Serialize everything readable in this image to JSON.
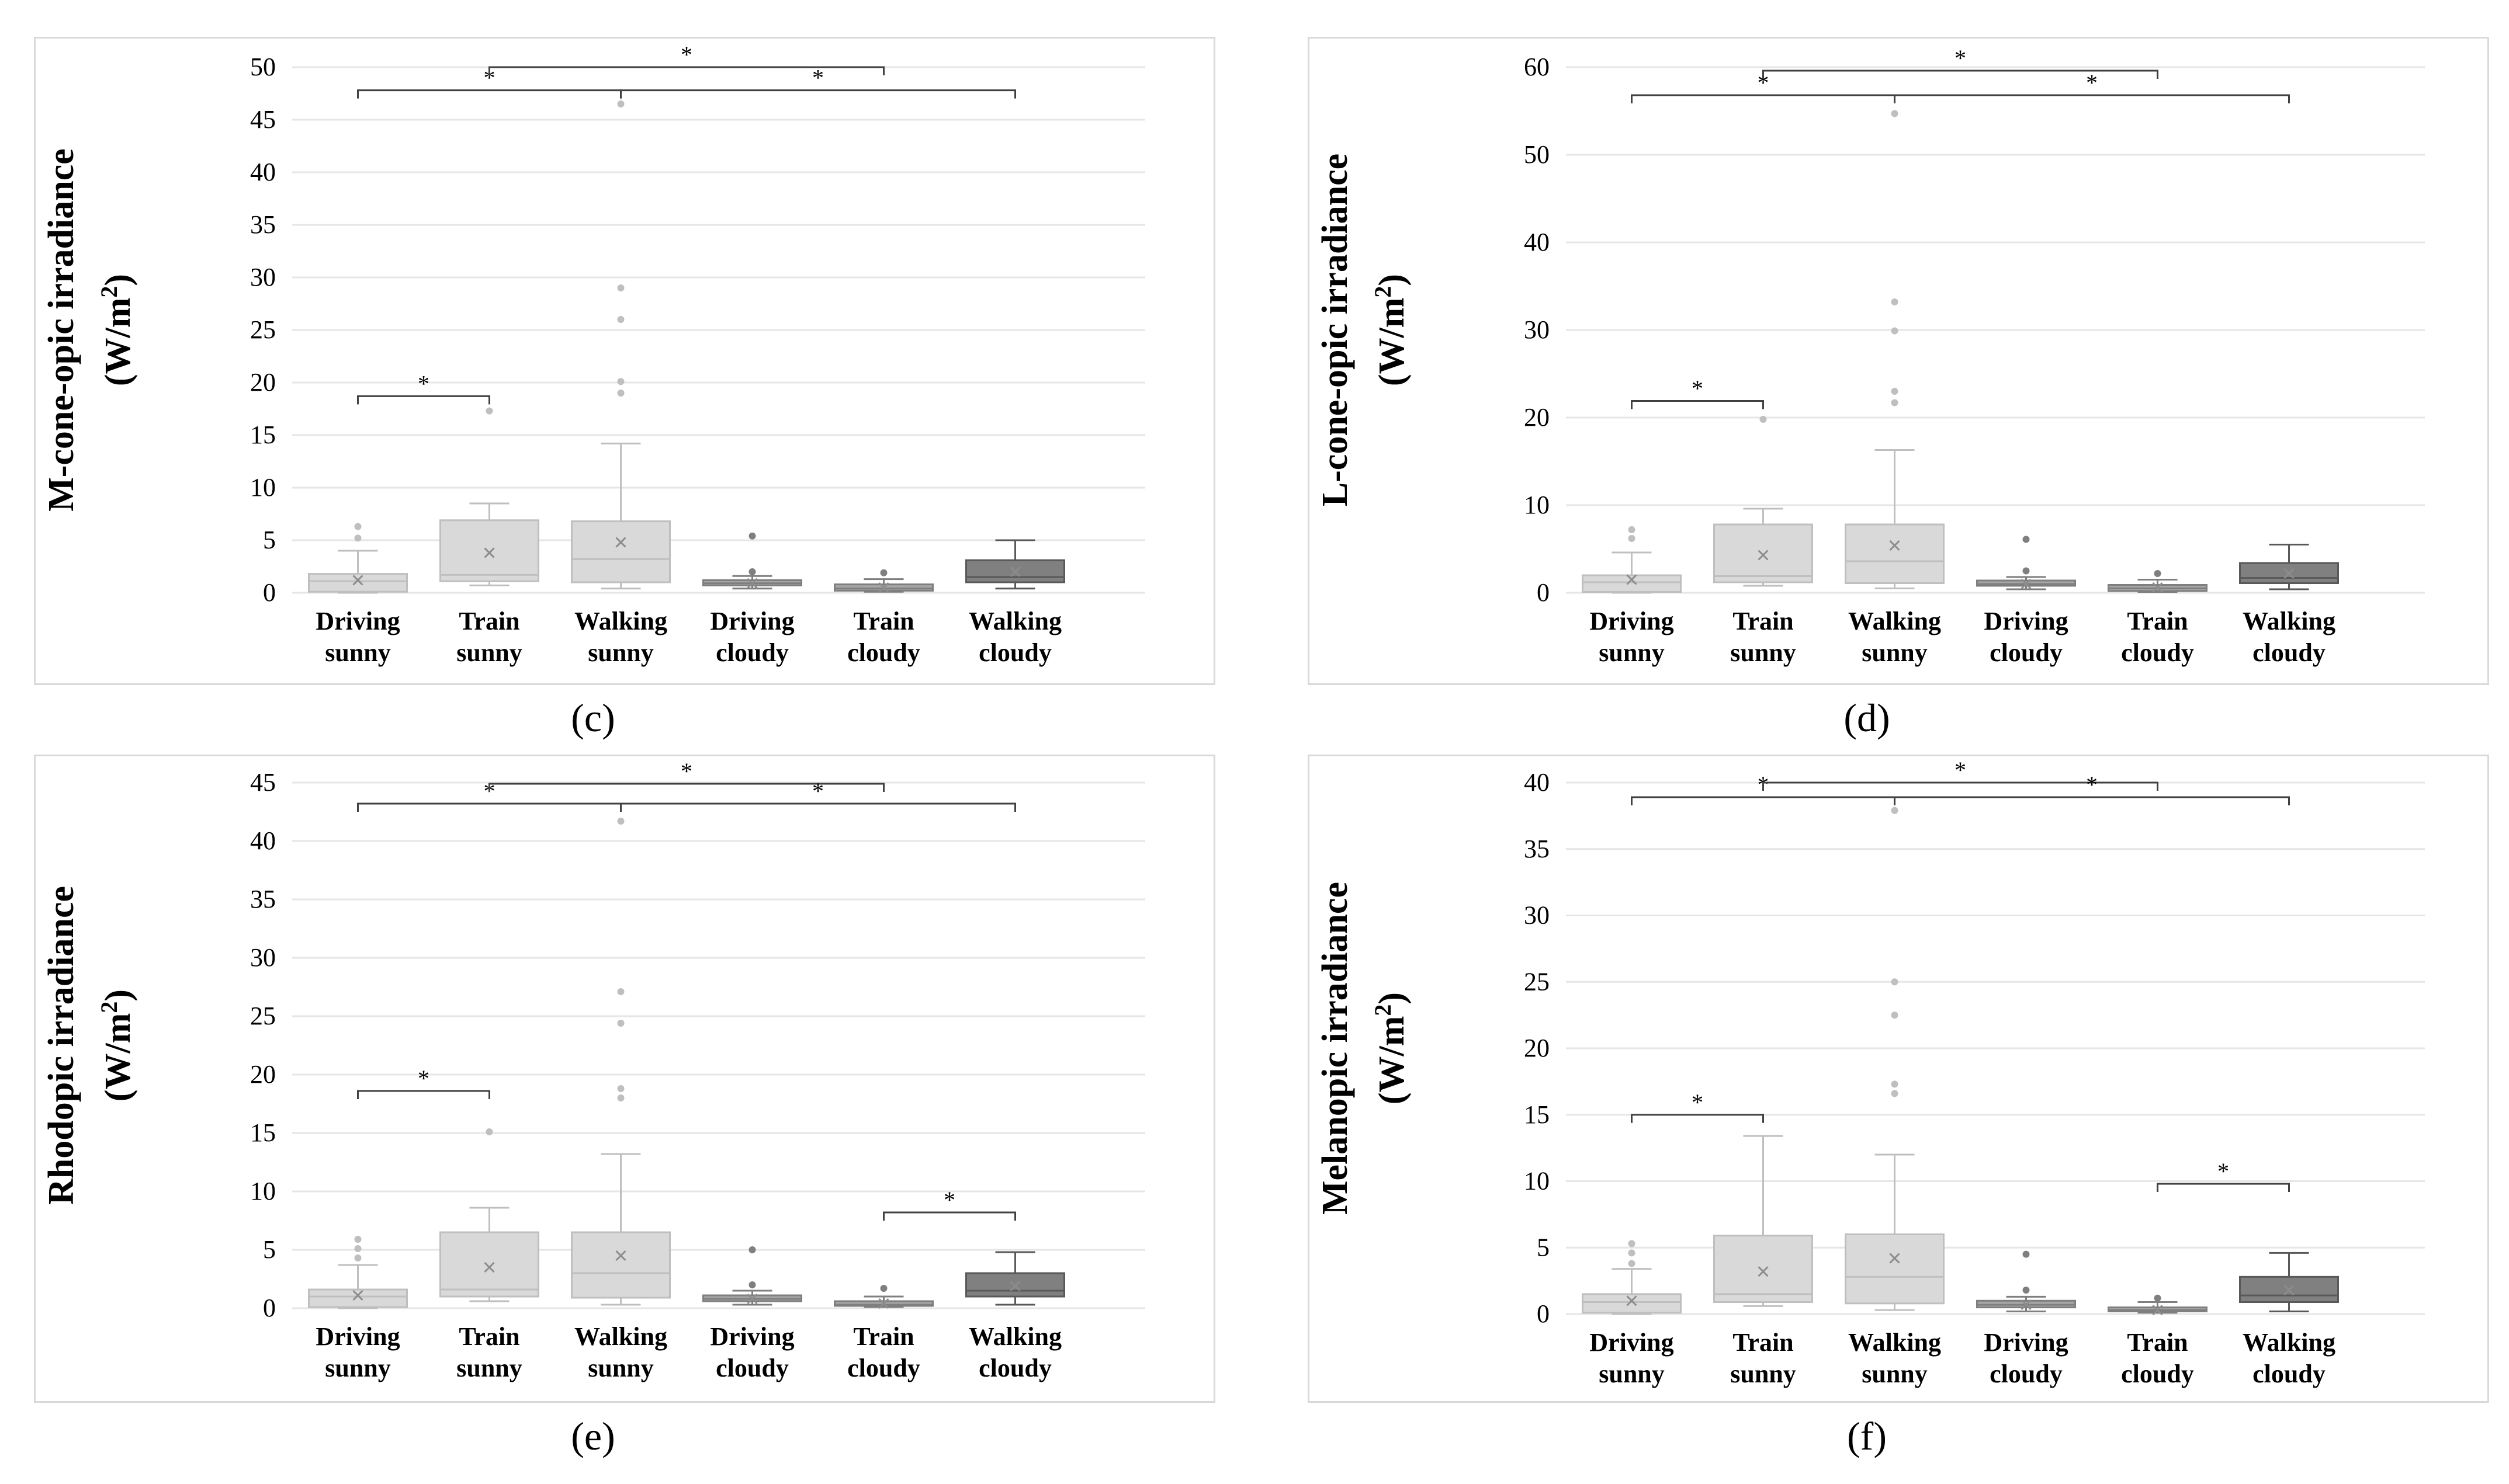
{
  "colors": {
    "sunny_fill": "#d9d9d9",
    "sunny_stroke": "#bfbfbf",
    "cloudy_fill": "#a6a6a6",
    "cloudy_stroke": "#7f7f7f",
    "walking_cloudy_fill": "#808080",
    "walking_cloudy_stroke": "#595959",
    "grid": "#e6e6e6",
    "bracket": "#404040"
  },
  "chart_data": [
    {
      "id": "c",
      "type": "boxplot",
      "caption": "(c)",
      "ylabel_line1": "M-cone-opic irradiance",
      "ylabel_line2_prefix": "(W/m",
      "ylabel_line2_sup": "2",
      "ylabel_line2_suffix": ")",
      "ylim": [
        0,
        50
      ],
      "yticks": [
        "0",
        "5",
        "10",
        "15",
        "20",
        "25",
        "30",
        "35",
        "40",
        "45",
        "50"
      ],
      "categories": [
        {
          "line1": "Driving",
          "line2": "sunny"
        },
        {
          "line1": "Train",
          "line2": "sunny"
        },
        {
          "line1": "Walking",
          "line2": "sunny"
        },
        {
          "line1": "Driving",
          "line2": "cloudy"
        },
        {
          "line1": "Train",
          "line2": "cloudy"
        },
        {
          "line1": "Walking",
          "line2": "cloudy"
        }
      ],
      "boxes": [
        {
          "min": 0,
          "q1": 0.1,
          "median": 1.1,
          "q3": 1.8,
          "max": 4.0,
          "mean": 1.2,
          "outliers": [
            5.2,
            6.3
          ]
        },
        {
          "min": 0.7,
          "q1": 1.1,
          "median": 1.7,
          "q3": 6.9,
          "max": 8.5,
          "mean": 3.8,
          "outliers": [
            17.3
          ]
        },
        {
          "min": 0.4,
          "q1": 1.0,
          "median": 3.2,
          "q3": 6.8,
          "max": 14.2,
          "mean": 4.8,
          "outliers": [
            19.0,
            20.1,
            26.0,
            29.0,
            46.5
          ]
        },
        {
          "min": 0.4,
          "q1": 0.7,
          "median": 0.9,
          "q3": 1.2,
          "max": 1.6,
          "mean": 0.9,
          "outliers": [
            2.0,
            5.4
          ]
        },
        {
          "min": 0.1,
          "q1": 0.2,
          "median": 0.4,
          "q3": 0.8,
          "max": 1.3,
          "mean": 0.5,
          "outliers": [
            1.9
          ]
        },
        {
          "min": 0.4,
          "q1": 1.0,
          "median": 1.5,
          "q3": 3.1,
          "max": 5.0,
          "mean": 2.0,
          "outliers": []
        }
      ],
      "brackets": [
        {
          "from": 0,
          "to": 2,
          "y": 47.8,
          "label": "*"
        },
        {
          "from": 1,
          "to": 4,
          "y": 50.0,
          "label": "*"
        },
        {
          "from": 2,
          "to": 5,
          "y": 47.8,
          "label": "*"
        },
        {
          "from": 0,
          "to": 1,
          "y": 18.7,
          "label": "*"
        }
      ]
    },
    {
      "id": "d",
      "type": "boxplot",
      "caption": "(d)",
      "ylabel_line1": "L-cone-opic irradiance",
      "ylabel_line2_prefix": "(W/m",
      "ylabel_line2_sup": "2",
      "ylabel_line2_suffix": ")",
      "ylim": [
        0,
        60
      ],
      "yticks": [
        "0",
        "10",
        "20",
        "30",
        "40",
        "50",
        "60"
      ],
      "categories": [
        {
          "line1": "Driving",
          "line2": "sunny"
        },
        {
          "line1": "Train",
          "line2": "sunny"
        },
        {
          "line1": "Walking",
          "line2": "sunny"
        },
        {
          "line1": "Driving",
          "line2": "cloudy"
        },
        {
          "line1": "Train",
          "line2": "cloudy"
        },
        {
          "line1": "Walking",
          "line2": "cloudy"
        }
      ],
      "boxes": [
        {
          "min": 0,
          "q1": 0.1,
          "median": 1.2,
          "q3": 2.0,
          "max": 4.6,
          "mean": 1.5,
          "outliers": [
            6.2,
            7.2
          ]
        },
        {
          "min": 0.8,
          "q1": 1.2,
          "median": 1.9,
          "q3": 7.8,
          "max": 9.6,
          "mean": 4.3,
          "outliers": [
            19.8
          ]
        },
        {
          "min": 0.5,
          "q1": 1.1,
          "median": 3.6,
          "q3": 7.8,
          "max": 16.3,
          "mean": 5.4,
          "outliers": [
            21.7,
            23.0,
            29.9,
            33.2,
            54.7
          ]
        },
        {
          "min": 0.4,
          "q1": 0.8,
          "median": 1.0,
          "q3": 1.4,
          "max": 1.8,
          "mean": 1.0,
          "outliers": [
            2.5,
            6.1
          ]
        },
        {
          "min": 0.1,
          "q1": 0.2,
          "median": 0.5,
          "q3": 0.9,
          "max": 1.5,
          "mean": 0.6,
          "outliers": [
            2.2
          ]
        },
        {
          "min": 0.4,
          "q1": 1.1,
          "median": 1.7,
          "q3": 3.4,
          "max": 5.5,
          "mean": 2.2,
          "outliers": []
        }
      ],
      "brackets": [
        {
          "from": 0,
          "to": 2,
          "y": 56.8,
          "label": "*"
        },
        {
          "from": 1,
          "to": 4,
          "y": 59.6,
          "label": "*"
        },
        {
          "from": 2,
          "to": 5,
          "y": 56.8,
          "label": "*"
        },
        {
          "from": 0,
          "to": 1,
          "y": 21.9,
          "label": "*"
        }
      ]
    },
    {
      "id": "e",
      "type": "boxplot",
      "caption": "(e)",
      "ylabel_line1": "Rhodopic irradiance",
      "ylabel_line2_prefix": "(W/m",
      "ylabel_line2_sup": "2",
      "ylabel_line2_suffix": ")",
      "ylim": [
        0,
        45
      ],
      "yticks": [
        "0",
        "5",
        "10",
        "15",
        "20",
        "25",
        "30",
        "35",
        "40",
        "45"
      ],
      "categories": [
        {
          "line1": "Driving",
          "line2": "sunny"
        },
        {
          "line1": "Train",
          "line2": "sunny"
        },
        {
          "line1": "Walking",
          "line2": "sunny"
        },
        {
          "line1": "Driving",
          "line2": "cloudy"
        },
        {
          "line1": "Train",
          "line2": "cloudy"
        },
        {
          "line1": "Walking",
          "line2": "cloudy"
        }
      ],
      "boxes": [
        {
          "min": 0,
          "q1": 0.1,
          "median": 1.0,
          "q3": 1.6,
          "max": 3.7,
          "mean": 1.1,
          "outliers": [
            4.3,
            5.1,
            5.9
          ]
        },
        {
          "min": 0.6,
          "q1": 1.0,
          "median": 1.6,
          "q3": 6.5,
          "max": 8.6,
          "mean": 3.5,
          "outliers": [
            15.1
          ]
        },
        {
          "min": 0.3,
          "q1": 0.9,
          "median": 3.0,
          "q3": 6.5,
          "max": 13.2,
          "mean": 4.5,
          "outliers": [
            18.0,
            18.8,
            24.4,
            27.1,
            41.7
          ]
        },
        {
          "min": 0.3,
          "q1": 0.6,
          "median": 0.8,
          "q3": 1.1,
          "max": 1.5,
          "mean": 0.8,
          "outliers": [
            2.0,
            5.0
          ]
        },
        {
          "min": 0.1,
          "q1": 0.2,
          "median": 0.3,
          "q3": 0.6,
          "max": 1.0,
          "mean": 0.4,
          "outliers": [
            1.7
          ]
        },
        {
          "min": 0.3,
          "q1": 1.0,
          "median": 1.5,
          "q3": 3.0,
          "max": 4.8,
          "mean": 1.9,
          "outliers": []
        }
      ],
      "brackets": [
        {
          "from": 0,
          "to": 2,
          "y": 43.2,
          "label": "*"
        },
        {
          "from": 1,
          "to": 4,
          "y": 44.9,
          "label": "*"
        },
        {
          "from": 2,
          "to": 5,
          "y": 43.2,
          "label": "*"
        },
        {
          "from": 0,
          "to": 1,
          "y": 18.6,
          "label": "*"
        },
        {
          "from": 4,
          "to": 5,
          "y": 8.2,
          "label": "*"
        }
      ]
    },
    {
      "id": "f",
      "type": "boxplot",
      "caption": "(f)",
      "ylabel_line1": "Melanopic irradiance",
      "ylabel_line2_prefix": "(W/m",
      "ylabel_line2_sup": "2",
      "ylabel_line2_suffix": ")",
      "ylim": [
        0,
        40
      ],
      "yticks": [
        "0",
        "5",
        "10",
        "15",
        "20",
        "25",
        "30",
        "35",
        "40"
      ],
      "categories": [
        {
          "line1": "Driving",
          "line2": "sunny"
        },
        {
          "line1": "Train",
          "line2": "sunny"
        },
        {
          "line1": "Walking",
          "line2": "sunny"
        },
        {
          "line1": "Driving",
          "line2": "cloudy"
        },
        {
          "line1": "Train",
          "line2": "cloudy"
        },
        {
          "line1": "Walking",
          "line2": "cloudy"
        }
      ],
      "boxes": [
        {
          "min": 0,
          "q1": 0.1,
          "median": 0.9,
          "q3": 1.5,
          "max": 3.4,
          "mean": 1.0,
          "outliers": [
            3.8,
            4.6,
            5.3
          ]
        },
        {
          "min": 0.6,
          "q1": 0.9,
          "median": 1.5,
          "q3": 5.9,
          "max": 13.4,
          "mean": 3.2,
          "outliers": []
        },
        {
          "min": 0.3,
          "q1": 0.8,
          "median": 2.8,
          "q3": 6.0,
          "max": 12.0,
          "mean": 4.2,
          "outliers": [
            16.6,
            17.3,
            22.5,
            25.0,
            37.9
          ]
        },
        {
          "min": 0.2,
          "q1": 0.5,
          "median": 0.7,
          "q3": 1.0,
          "max": 1.3,
          "mean": 0.7,
          "outliers": [
            1.8,
            4.5
          ]
        },
        {
          "min": 0.1,
          "q1": 0.2,
          "median": 0.3,
          "q3": 0.5,
          "max": 0.9,
          "mean": 0.3,
          "outliers": [
            1.2
          ]
        },
        {
          "min": 0.2,
          "q1": 0.9,
          "median": 1.4,
          "q3": 2.8,
          "max": 4.6,
          "mean": 1.8,
          "outliers": []
        }
      ],
      "brackets": [
        {
          "from": 0,
          "to": 2,
          "y": 38.9,
          "label": "*"
        },
        {
          "from": 1,
          "to": 4,
          "y": 40.0,
          "label": "*"
        },
        {
          "from": 2,
          "to": 5,
          "y": 38.9,
          "label": "*"
        },
        {
          "from": 0,
          "to": 1,
          "y": 15.0,
          "label": "*"
        },
        {
          "from": 4,
          "to": 5,
          "y": 9.8,
          "label": "*"
        }
      ]
    }
  ]
}
